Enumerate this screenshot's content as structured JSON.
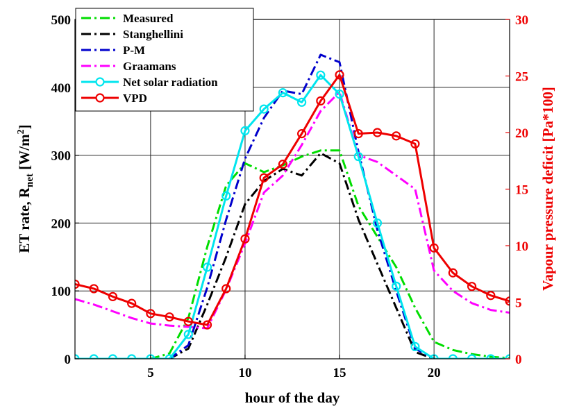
{
  "chart_data": {
    "type": "line",
    "xlabel": "hour of the day",
    "ylabel_left": "ET rate, R",
    "ylabel_left_sub": "net",
    "ylabel_left_unit_open": " [W/m",
    "ylabel_left_unit_sup": "2",
    "ylabel_left_unit_close": "]",
    "ylabel_right": "Vapour pressure deficit [Pa*100]",
    "xlim": [
      1,
      24
    ],
    "ylim_left": [
      0,
      500
    ],
    "ylim_right": [
      0,
      30
    ],
    "xticks": [
      5,
      10,
      15,
      20
    ],
    "yticks_left": [
      0,
      100,
      200,
      300,
      400,
      500
    ],
    "yticks_right": [
      0,
      5,
      10,
      15,
      20,
      25,
      30
    ],
    "grid": true,
    "legend_position": "top-left",
    "series": [
      {
        "name": "Measured",
        "color": "#00dd00",
        "dash": "dashdot",
        "marker": "none",
        "axis": "left",
        "x": [
          1,
          2,
          3,
          4,
          5,
          6,
          7,
          8,
          9,
          10,
          11,
          12,
          13,
          14,
          15,
          16,
          17,
          18,
          19,
          20,
          21,
          22,
          23,
          24
        ],
        "y": [
          0,
          0,
          0,
          0,
          0,
          8,
          60,
          165,
          255,
          288,
          275,
          285,
          298,
          307,
          307,
          225,
          180,
          135,
          75,
          25,
          13,
          7,
          3,
          1
        ]
      },
      {
        "name": "Stanghellini",
        "color": "#000000",
        "dash": "dashdot",
        "marker": "none",
        "axis": "left",
        "x": [
          1,
          2,
          3,
          4,
          5,
          6,
          7,
          8,
          9,
          10,
          11,
          12,
          13,
          14,
          15,
          16,
          17,
          18,
          19,
          20,
          21,
          22,
          23,
          24
        ],
        "y": [
          0,
          0,
          0,
          0,
          0,
          0,
          15,
          80,
          150,
          228,
          262,
          280,
          270,
          303,
          288,
          205,
          140,
          75,
          10,
          0,
          0,
          0,
          0,
          0
        ]
      },
      {
        "name": "P-M",
        "color": "#0000cc",
        "dash": "dashdot",
        "marker": "none",
        "axis": "left",
        "x": [
          1,
          2,
          3,
          4,
          5,
          6,
          7,
          8,
          9,
          10,
          11,
          12,
          13,
          14,
          15,
          16,
          17,
          18,
          19,
          20,
          21,
          22,
          23,
          24
        ],
        "y": [
          0,
          0,
          0,
          0,
          0,
          0,
          20,
          105,
          205,
          295,
          355,
          395,
          390,
          448,
          437,
          305,
          190,
          100,
          15,
          0,
          0,
          0,
          0,
          0
        ]
      },
      {
        "name": "Graamans",
        "color": "#ff00ff",
        "dash": "dashdot",
        "marker": "none",
        "axis": "left",
        "x": [
          1,
          2,
          3,
          4,
          5,
          6,
          7,
          8,
          9,
          10,
          11,
          12,
          13,
          14,
          15,
          16,
          17,
          18,
          19,
          20,
          21,
          22,
          23,
          24
        ],
        "y": [
          88,
          80,
          70,
          60,
          52,
          49,
          47,
          45,
          102,
          170,
          245,
          270,
          315,
          365,
          393,
          300,
          290,
          270,
          250,
          130,
          100,
          82,
          72,
          68
        ]
      },
      {
        "name": "Net solar radiation",
        "color": "#00e5ee",
        "dash": "solid",
        "marker": "circle",
        "axis": "left",
        "x": [
          1,
          2,
          3,
          4,
          5,
          6,
          7,
          8,
          9,
          10,
          11,
          12,
          13,
          14,
          15,
          16,
          17,
          18,
          19,
          20,
          21,
          22,
          23,
          24
        ],
        "y": [
          0,
          0,
          0,
          0,
          0,
          0,
          36,
          135,
          240,
          336,
          368,
          392,
          378,
          418,
          390,
          298,
          200,
          107,
          18,
          0,
          0,
          0,
          0,
          0
        ]
      },
      {
        "name": "VPD",
        "color": "#ee0000",
        "dash": "solid",
        "marker": "circle",
        "axis": "right",
        "x": [
          1,
          2,
          3,
          4,
          5,
          6,
          7,
          8,
          9,
          10,
          11,
          12,
          13,
          14,
          15,
          16,
          17,
          18,
          19,
          20,
          21,
          22,
          23,
          24
        ],
        "y": [
          6.6,
          6.2,
          5.5,
          4.9,
          4.0,
          3.7,
          3.3,
          3.0,
          6.2,
          10.6,
          16.0,
          17.2,
          19.9,
          22.8,
          25.1,
          19.9,
          20.0,
          19.7,
          19.0,
          9.8,
          7.6,
          6.4,
          5.6,
          5.1
        ]
      }
    ]
  }
}
